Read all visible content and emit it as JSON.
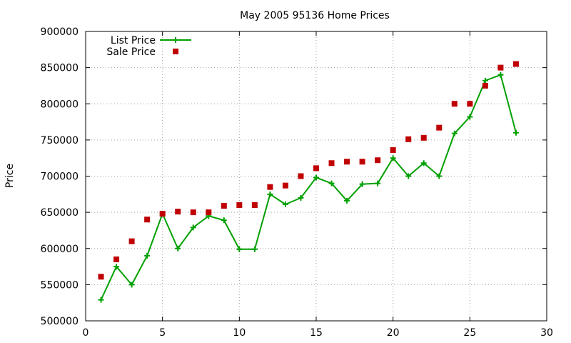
{
  "chart_data": {
    "type": "line",
    "title": "May 2005 95136 Home Prices",
    "xlabel": "",
    "ylabel": "Price",
    "xlim": [
      0,
      30
    ],
    "ylim": [
      500000,
      900000
    ],
    "x_ticks": [
      0,
      5,
      10,
      15,
      20,
      25,
      30
    ],
    "y_ticks": [
      500000,
      550000,
      600000,
      650000,
      700000,
      750000,
      800000,
      850000,
      900000
    ],
    "grid": true,
    "legend_position": "top-left",
    "x": [
      1,
      2,
      3,
      4,
      5,
      6,
      7,
      8,
      9,
      10,
      11,
      12,
      13,
      14,
      15,
      16,
      17,
      18,
      19,
      20,
      21,
      22,
      23,
      24,
      25,
      26,
      27,
      28
    ],
    "series": [
      {
        "name": "List Price",
        "style": "line-plus",
        "color": "#00a000",
        "values": [
          529000,
          575000,
          550000,
          590000,
          648000,
          600000,
          629000,
          645000,
          639000,
          599000,
          599000,
          675000,
          661000,
          670000,
          698000,
          690000,
          666000,
          689000,
          690000,
          725000,
          700000,
          718000,
          700000,
          759000,
          782000,
          832000,
          840000,
          760000
        ]
      },
      {
        "name": "Sale Price",
        "style": "square",
        "color": "#c00000",
        "values": [
          561000,
          585000,
          610000,
          640000,
          648000,
          651000,
          650000,
          650000,
          659000,
          660000,
          660000,
          685000,
          687000,
          700000,
          711000,
          718000,
          720000,
          720000,
          722000,
          736000,
          751000,
          753000,
          767000,
          800000,
          800000,
          825000,
          850000,
          855000
        ]
      }
    ]
  }
}
